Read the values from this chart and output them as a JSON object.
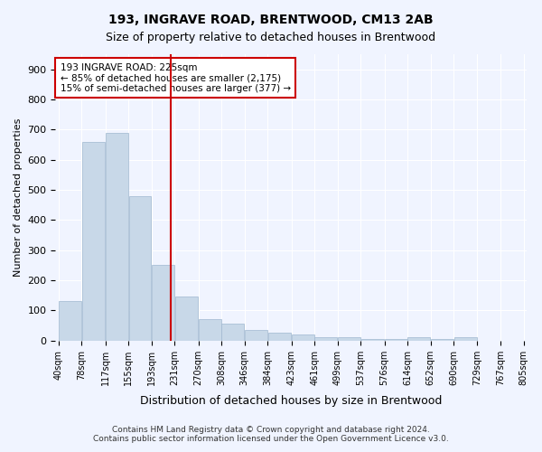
{
  "title1": "193, INGRAVE ROAD, BRENTWOOD, CM13 2AB",
  "title2": "Size of property relative to detached houses in Brentwood",
  "xlabel": "Distribution of detached houses by size in Brentwood",
  "ylabel": "Number of detached properties",
  "footer1": "Contains HM Land Registry data © Crown copyright and database right 2024.",
  "footer2": "Contains public sector information licensed under the Open Government Licence v3.0.",
  "annotation_title": "193 INGRAVE ROAD: 225sqm",
  "annotation_line1": "← 85% of detached houses are smaller (2,175)",
  "annotation_line2": "15% of semi-detached houses are larger (377) →",
  "bar_color": "#c8d8e8",
  "bar_edge_color": "#a0b8d0",
  "vline_x": 225,
  "vline_color": "#cc0000",
  "bin_edges": [
    40,
    78,
    117,
    155,
    193,
    231,
    270,
    308,
    346,
    384,
    423,
    461,
    499,
    537,
    576,
    614,
    652,
    690,
    729,
    767,
    805
  ],
  "bar_heights": [
    130,
    660,
    690,
    480,
    250,
    145,
    70,
    55,
    35,
    25,
    20,
    10,
    10,
    5,
    5,
    10,
    5,
    10,
    0,
    0
  ],
  "ylim": [
    0,
    950
  ],
  "yticks": [
    0,
    100,
    200,
    300,
    400,
    500,
    600,
    700,
    800,
    900
  ],
  "bg_color": "#f0f4ff",
  "grid_color": "#ffffff",
  "annotation_box_color": "#ffffff",
  "annotation_box_edge": "#cc0000"
}
